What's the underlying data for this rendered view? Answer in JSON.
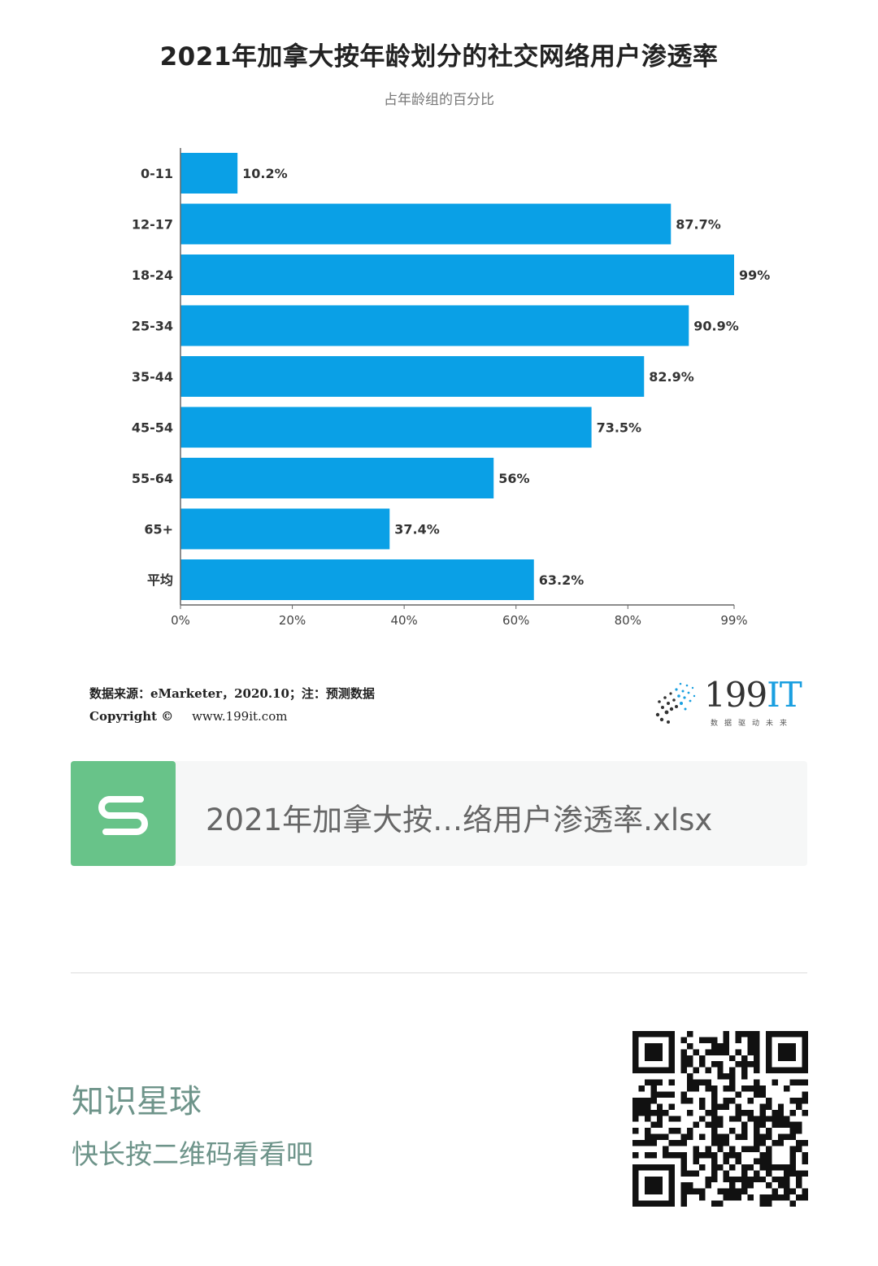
{
  "chart_data": {
    "type": "bar",
    "orientation": "horizontal",
    "title": "2021年加拿大按年龄划分的社交网络用户渗透率",
    "subtitle": "占年龄组的百分比",
    "categories": [
      "0-11",
      "12-17",
      "18-24",
      "25-34",
      "35-44",
      "45-54",
      "55-64",
      "65+",
      "平均"
    ],
    "values": [
      10.2,
      87.7,
      99,
      90.9,
      82.9,
      73.5,
      56,
      37.4,
      63.2
    ],
    "value_labels": [
      "10.2%",
      "87.7%",
      "99%",
      "90.9%",
      "82.9%",
      "73.5%",
      "56%",
      "37.4%",
      "63.2%"
    ],
    "x_ticks": [
      0,
      20,
      40,
      60,
      80,
      99
    ],
    "x_tick_labels": [
      "0%",
      "20%",
      "40%",
      "60%",
      "80%",
      "99%"
    ],
    "xlim": [
      0,
      99
    ],
    "bar_color": "#0aa0e6",
    "grid": false
  },
  "footer": {
    "source": "数据来源：eMarketer，2020.10；注：预测数据",
    "copyright_label": "Copyright ©",
    "copyright_url": "www.199it.com"
  },
  "logo": {
    "name_digits": "199",
    "name_letters": "IT",
    "slogan": "数据驱动未来"
  },
  "file_card": {
    "icon_letter": "S",
    "icon_color": "#68c389",
    "file_name": "2021年加拿大按…络用户渗透率.xlsx"
  },
  "promo": {
    "brand": "知识星球",
    "hint": "快长按二维码看看吧",
    "text_color": "#6e948a",
    "qr_icon": "qr-code"
  }
}
